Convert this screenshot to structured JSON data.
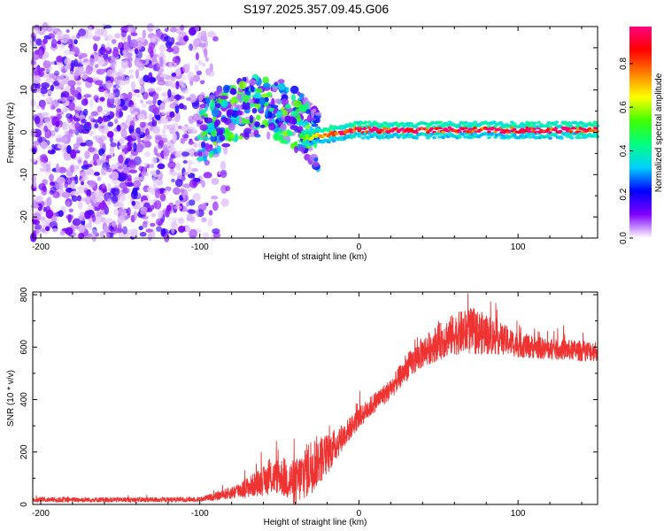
{
  "title": "S197.2025.357.09.45.G06",
  "chart_data": [
    {
      "type": "heatmap",
      "name": "spectrogram",
      "xlabel": "Height of straight line (km)",
      "ylabel": "Frequency (Hz)",
      "xlim": [
        -205,
        150
      ],
      "ylim": [
        -25,
        25
      ],
      "xticks": [
        -200,
        -100,
        0,
        100
      ],
      "yticks": [
        -20,
        -10,
        0,
        10,
        20
      ],
      "noise_region_x": [
        -205,
        -95
      ],
      "transition_region_x": [
        -100,
        -25
      ],
      "stable_line_x": [
        -35,
        150
      ],
      "stable_line_frequency_hz": 0.5,
      "colorbar": {
        "label": "Normalized spectral amplitude",
        "range": [
          0.0,
          0.97
        ],
        "ticks": [
          0.0,
          0.2,
          0.4,
          0.6,
          0.8
        ],
        "colormap": [
          "#FFFFFF",
          "#8000FF",
          "#0000FF",
          "#00D0FF",
          "#00FF80",
          "#40FF00",
          "#FFFF00",
          "#FF8000",
          "#FF0000",
          "#FF0080"
        ]
      }
    },
    {
      "type": "line",
      "name": "snr",
      "xlabel": "Height of straight line (km)",
      "ylabel": "SNR (10 * v/v)",
      "xlim": [
        -205,
        150
      ],
      "ylim": [
        0,
        810
      ],
      "xticks": [
        -200,
        -100,
        0,
        100
      ],
      "yticks": [
        0,
        200,
        400,
        600,
        800
      ],
      "color": "#EE3333",
      "series": [
        {
          "name": "SNR",
          "x": [
            -205,
            -180,
            -150,
            -120,
            -100,
            -90,
            -80,
            -70,
            -60,
            -50,
            -40,
            -30,
            -20,
            -10,
            0,
            10,
            20,
            30,
            40,
            50,
            60,
            70,
            80,
            90,
            100,
            110,
            120,
            130,
            140,
            150
          ],
          "mean": [
            18,
            18,
            18,
            18,
            20,
            30,
            45,
            65,
            90,
            110,
            80,
            150,
            190,
            260,
            330,
            390,
            440,
            520,
            580,
            620,
            650,
            660,
            650,
            630,
            610,
            600,
            590,
            590,
            585,
            585
          ],
          "noise_amp": [
            10,
            10,
            10,
            10,
            10,
            15,
            25,
            40,
            55,
            70,
            90,
            110,
            80,
            50,
            40,
            40,
            40,
            50,
            60,
            70,
            80,
            90,
            80,
            60,
            50,
            45,
            40,
            40,
            40,
            40
          ]
        }
      ]
    }
  ]
}
